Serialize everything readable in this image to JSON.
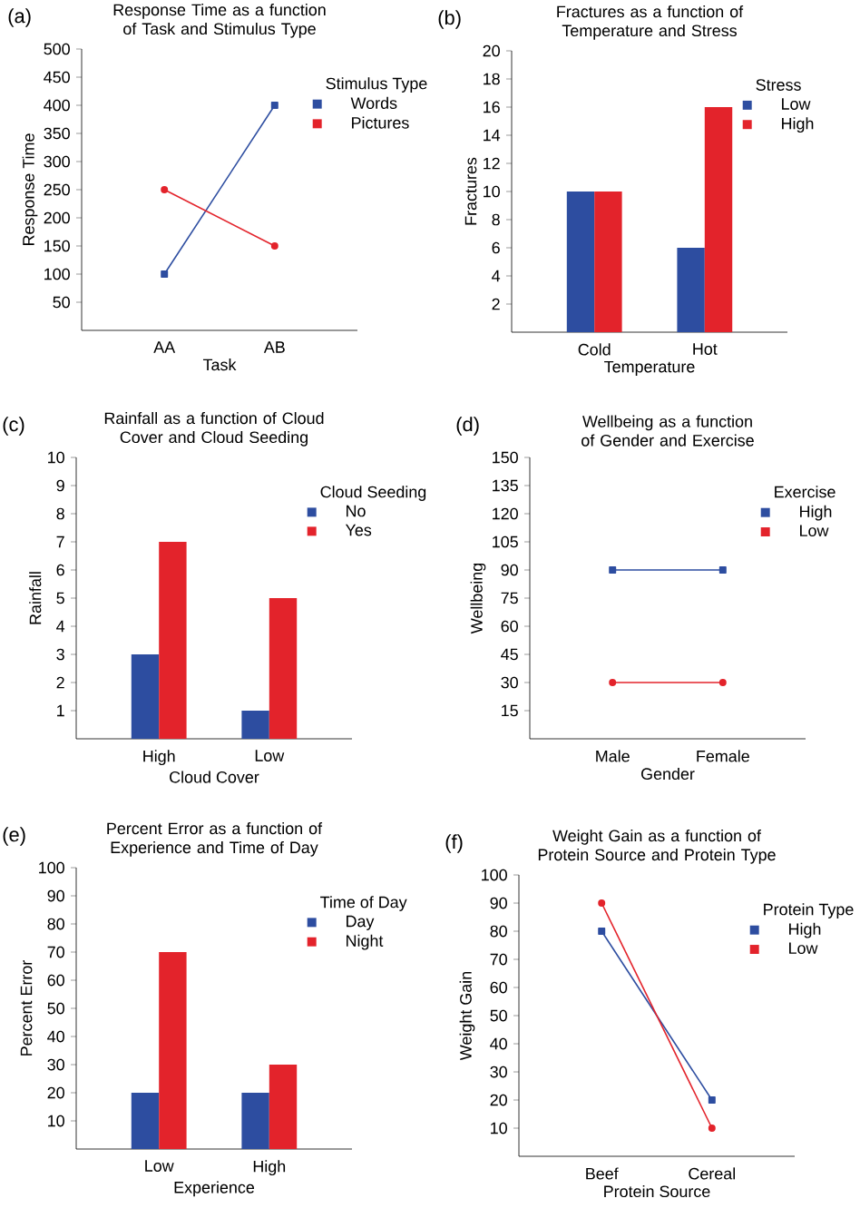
{
  "chart_data": [
    {
      "type": "line",
      "title": "Response Time as a function of Task and Stimulus Type",
      "xlabel": "Task",
      "ylabel": "Response Time",
      "legend_title": "Stimulus Type",
      "legend": "top right",
      "annotations": [
        "(a)"
      ],
      "categories": [
        "AA",
        "AB"
      ],
      "ylim": [
        0,
        500
      ],
      "yticks": [
        50,
        100,
        150,
        200,
        250,
        300,
        350,
        400,
        450,
        500
      ],
      "series": [
        {
          "name": "Words",
          "color": "#2d4da0",
          "marker": "square",
          "values": [
            100,
            400
          ]
        },
        {
          "name": "Pictures",
          "color": "#e3232b",
          "marker": "circle",
          "values": [
            250,
            150
          ]
        }
      ]
    },
    {
      "type": "bar",
      "title": "Fractures as a function of Temperature and Stress",
      "xlabel": "Temperature",
      "ylabel": "Fractures",
      "legend_title": "Stress",
      "legend": "top right",
      "annotations": [
        "(b)"
      ],
      "categories": [
        "Cold",
        "Hot"
      ],
      "ylim": [
        0,
        20
      ],
      "yticks": [
        2,
        4,
        6,
        8,
        10,
        12,
        14,
        16,
        18,
        20
      ],
      "series": [
        {
          "name": "Low",
          "color": "#2d4da0",
          "values": [
            10,
            6
          ]
        },
        {
          "name": "High",
          "color": "#e3232b",
          "values": [
            10,
            16
          ]
        }
      ]
    },
    {
      "type": "bar",
      "title": "Rainfall as a function of Cloud Cover and Cloud Seeding",
      "xlabel": "Cloud Cover",
      "ylabel": "Rainfall",
      "legend_title": "Cloud Seeding",
      "legend": "top right",
      "annotations": [
        "(c)"
      ],
      "categories": [
        "High",
        "Low"
      ],
      "ylim": [
        0,
        10
      ],
      "yticks": [
        1,
        2,
        3,
        4,
        5,
        6,
        7,
        8,
        9,
        10
      ],
      "series": [
        {
          "name": "No",
          "color": "#2d4da0",
          "values": [
            3,
            1
          ]
        },
        {
          "name": "Yes",
          "color": "#e3232b",
          "values": [
            7,
            5
          ]
        }
      ]
    },
    {
      "type": "line",
      "title": "Wellbeing as a function of Gender and Exercise",
      "xlabel": "Gender",
      "ylabel": "Wellbeing",
      "legend_title": "Exercise",
      "legend": "top right",
      "annotations": [
        "(d)"
      ],
      "categories": [
        "Male",
        "Female"
      ],
      "ylim": [
        0,
        150
      ],
      "yticks": [
        15,
        30,
        45,
        60,
        75,
        90,
        105,
        120,
        135,
        150
      ],
      "series": [
        {
          "name": "High",
          "color": "#2d4da0",
          "marker": "square",
          "values": [
            90,
            90
          ]
        },
        {
          "name": "Low",
          "color": "#e3232b",
          "marker": "circle",
          "values": [
            30,
            30
          ]
        }
      ]
    },
    {
      "type": "bar",
      "title": "Percent Error as a function of Experience and Time of Day",
      "xlabel": "Experience",
      "ylabel": "Percent Error",
      "legend_title": "Time of Day",
      "legend": "top right",
      "annotations": [
        "(e)"
      ],
      "categories": [
        "Low",
        "High"
      ],
      "ylim": [
        0,
        100
      ],
      "yticks": [
        10,
        20,
        30,
        40,
        50,
        60,
        70,
        80,
        90,
        100
      ],
      "series": [
        {
          "name": "Day",
          "color": "#2d4da0",
          "values": [
            20,
            20
          ]
        },
        {
          "name": "Night",
          "color": "#e3232b",
          "values": [
            70,
            30
          ]
        }
      ]
    },
    {
      "type": "line",
      "title": "Weight Gain as a function of Protein Source and Protein Type",
      "xlabel": "Protein Source",
      "ylabel": "Weight Gain",
      "legend_title": "Protein Type",
      "legend": "top right",
      "annotations": [
        "(f)"
      ],
      "categories": [
        "Beef",
        "Cereal"
      ],
      "ylim": [
        0,
        100
      ],
      "yticks": [
        10,
        20,
        30,
        40,
        50,
        60,
        70,
        80,
        90,
        100
      ],
      "series": [
        {
          "name": "High",
          "color": "#2d4da0",
          "marker": "square",
          "values": [
            80,
            20
          ]
        },
        {
          "name": "Low",
          "color": "#e3232b",
          "marker": "circle",
          "values": [
            90,
            10
          ]
        }
      ]
    }
  ]
}
